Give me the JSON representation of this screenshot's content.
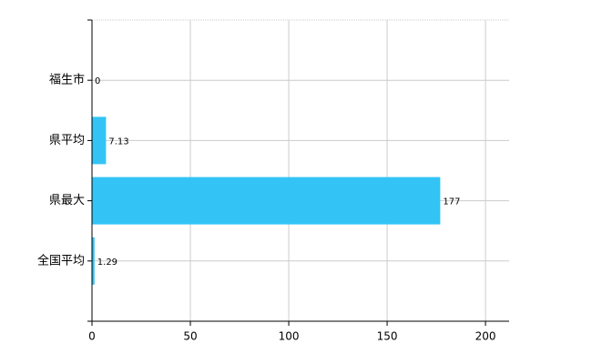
{
  "chart_data": {
    "type": "bar",
    "orientation": "horizontal",
    "categories": [
      "福生市",
      "県平均",
      "県最大",
      "全国平均"
    ],
    "values": [
      0,
      7.13,
      177,
      1.29
    ],
    "color": "#33c4f5",
    "xlim": [
      0,
      212
    ],
    "xticks": [
      0,
      50,
      100,
      150,
      200
    ],
    "grid": true
  }
}
